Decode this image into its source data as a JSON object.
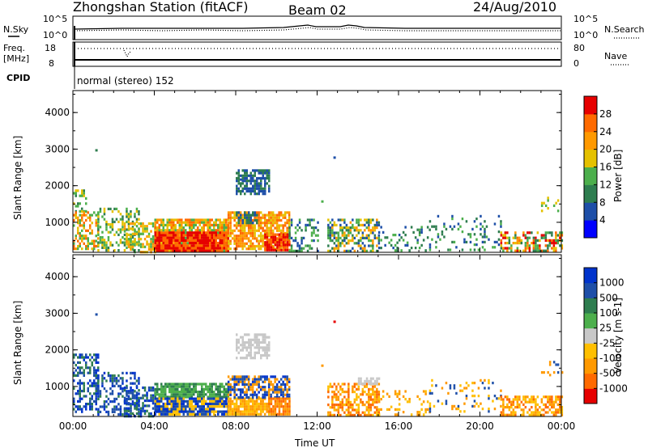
{
  "title": {
    "station": "Zhongshan Station (fitACF)",
    "beam": "Beam 02",
    "date": "24/Aug/2010"
  },
  "header_panels": {
    "noise_label": "N.Sky",
    "noise_ticks": [
      "10^5",
      "10^0"
    ],
    "search_label": "N.Search",
    "search_ticks": [
      "10^5",
      "10^0"
    ],
    "freq_label_1": "Freq.",
    "freq_label_2": "[MHz]",
    "freq_ticks": [
      "18",
      "8"
    ],
    "nave_label": "Nave",
    "nave_ticks": [
      "80",
      "0"
    ],
    "cpid_label": "CPID",
    "cpid_text": "normal (stereo) 152"
  },
  "chart_data": [
    {
      "type": "heatmap",
      "name": "power",
      "ylabel": "Slant Range [km]",
      "xlabel": "",
      "ylim": [
        180,
        4600
      ],
      "yticks": [
        "1000",
        "2000",
        "3000",
        "4000"
      ],
      "xlim": [
        0,
        24
      ],
      "xticks": [
        "00:00",
        "04:00",
        "08:00",
        "12:00",
        "16:00",
        "20:00",
        "00:00"
      ],
      "colorbar": {
        "label": "Power [dB]",
        "ticks": [
          "28",
          "24",
          "20",
          "16",
          "12",
          "8",
          "4"
        ],
        "colors": [
          "#0000ff",
          "#1e4fa8",
          "#2e7d4f",
          "#4caf4c",
          "#e5c100",
          "#ff9900",
          "#ff6a00",
          "#e60000"
        ]
      },
      "points": [
        {
          "t_hr": 1.1,
          "range_km": 3000,
          "level": 2
        },
        {
          "t_hr": 8.2,
          "range_km": 2200,
          "level": 1
        },
        {
          "t_hr": 8.8,
          "range_km": 2000,
          "level": 1
        },
        {
          "t_hr": 12.8,
          "range_km": 2800,
          "level": 1
        },
        {
          "t_hr": 12.2,
          "range_km": 1600,
          "level": 3
        }
      ],
      "regions": [
        {
          "t0": 0.0,
          "t1": 0.6,
          "r0": 1300,
          "r1": 1900,
          "fill": 0.4,
          "mix": [
            2,
            3,
            4
          ]
        },
        {
          "t0": 0.0,
          "t1": 1.2,
          "r0": 300,
          "r1": 1300,
          "fill": 0.55,
          "mix": [
            3,
            4,
            5,
            6
          ]
        },
        {
          "t0": 1.2,
          "t1": 3.2,
          "r0": 200,
          "r1": 1400,
          "fill": 0.4,
          "mix": [
            2,
            3,
            4
          ]
        },
        {
          "t0": 2.5,
          "t1": 4.0,
          "r0": 200,
          "r1": 1000,
          "fill": 0.55,
          "mix": [
            3,
            4,
            5
          ]
        },
        {
          "t0": 4.0,
          "t1": 7.6,
          "r0": 250,
          "r1": 1100,
          "fill": 0.85,
          "mix": [
            3,
            4,
            5,
            6
          ]
        },
        {
          "t0": 4.0,
          "t1": 7.6,
          "r0": 250,
          "r1": 750,
          "fill": 0.95,
          "mix": [
            6,
            7
          ]
        },
        {
          "t0": 7.6,
          "t1": 10.6,
          "r0": 250,
          "r1": 1300,
          "fill": 0.75,
          "mix": [
            4,
            5,
            6
          ]
        },
        {
          "t0": 9.4,
          "t1": 10.6,
          "r0": 250,
          "r1": 700,
          "fill": 0.85,
          "mix": [
            6,
            7
          ]
        },
        {
          "t0": 8.0,
          "t1": 9.6,
          "r0": 1800,
          "r1": 2450,
          "fill": 0.7,
          "mix": [
            1,
            2
          ]
        },
        {
          "t0": 8.0,
          "t1": 9.0,
          "r0": 1000,
          "r1": 1300,
          "fill": 0.7,
          "mix": [
            1,
            2
          ]
        },
        {
          "t0": 10.6,
          "t1": 12.0,
          "r0": 250,
          "r1": 1100,
          "fill": 0.3,
          "mix": [
            1,
            2,
            3
          ]
        },
        {
          "t0": 12.5,
          "t1": 15.0,
          "r0": 250,
          "r1": 1100,
          "fill": 0.55,
          "mix": [
            1,
            2,
            3,
            4,
            5
          ]
        },
        {
          "t0": 15.0,
          "t1": 17.5,
          "r0": 250,
          "r1": 900,
          "fill": 0.2,
          "mix": [
            1,
            2,
            3
          ]
        },
        {
          "t0": 17.5,
          "t1": 21.0,
          "r0": 250,
          "r1": 1200,
          "fill": 0.15,
          "mix": [
            1,
            2,
            3
          ]
        },
        {
          "t0": 21.0,
          "t1": 24.0,
          "r0": 250,
          "r1": 750,
          "fill": 0.6,
          "mix": [
            2,
            3,
            4,
            5,
            6,
            7
          ]
        },
        {
          "t0": 23.0,
          "t1": 24.0,
          "r0": 1300,
          "r1": 1700,
          "fill": 0.2,
          "mix": [
            3,
            4
          ]
        }
      ]
    },
    {
      "type": "heatmap",
      "name": "velocity",
      "ylabel": "Slant Range [km]",
      "xlabel": "Time UT",
      "ylim": [
        180,
        4600
      ],
      "yticks": [
        "1000",
        "2000",
        "3000",
        "4000"
      ],
      "xlim": [
        0,
        24
      ],
      "xticks": [
        "00:00",
        "04:00",
        "08:00",
        "12:00",
        "16:00",
        "20:00",
        "00:00"
      ],
      "colorbar": {
        "label": "Velocity [m s-1]",
        "ticks": [
          "1000",
          "500",
          "100",
          "25",
          "-25",
          "-100",
          "-500",
          "-1000"
        ],
        "colors": [
          "#e60000",
          "#ff6a00",
          "#ff9900",
          "#ffbf00",
          "#c8c8c8",
          "#4caf4c",
          "#2e7d4f",
          "#1e4fa8",
          "#0033cc"
        ]
      },
      "points": [
        {
          "t_hr": 1.1,
          "range_km": 3000,
          "level": 7
        },
        {
          "t_hr": 12.8,
          "range_km": 2800,
          "level": 0
        },
        {
          "t_hr": 12.2,
          "range_km": 1600,
          "level": 2
        }
      ],
      "regions": [
        {
          "t0": 0.0,
          "t1": 1.2,
          "r0": 300,
          "r1": 1900,
          "fill": 0.45,
          "mix": [
            7,
            8,
            6
          ]
        },
        {
          "t0": 1.2,
          "t1": 3.2,
          "r0": 200,
          "r1": 1400,
          "fill": 0.4,
          "mix": [
            7,
            8,
            6
          ]
        },
        {
          "t0": 2.5,
          "t1": 4.0,
          "r0": 200,
          "r1": 1000,
          "fill": 0.55,
          "mix": [
            7,
            8,
            6
          ]
        },
        {
          "t0": 4.0,
          "t1": 7.6,
          "r0": 700,
          "r1": 1100,
          "fill": 0.85,
          "mix": [
            6,
            5
          ]
        },
        {
          "t0": 4.0,
          "t1": 7.6,
          "r0": 250,
          "r1": 700,
          "fill": 0.9,
          "mix": [
            8,
            7,
            3
          ]
        },
        {
          "t0": 7.6,
          "t1": 9.6,
          "r0": 250,
          "r1": 700,
          "fill": 0.85,
          "mix": [
            2,
            3
          ]
        },
        {
          "t0": 7.6,
          "t1": 10.6,
          "r0": 700,
          "r1": 1300,
          "fill": 0.7,
          "mix": [
            7,
            8,
            2
          ]
        },
        {
          "t0": 9.6,
          "t1": 10.6,
          "r0": 250,
          "r1": 700,
          "fill": 0.8,
          "mix": [
            2,
            1
          ]
        },
        {
          "t0": 8.0,
          "t1": 9.6,
          "r0": 1800,
          "r1": 2450,
          "fill": 0.65,
          "mix": [
            4
          ]
        },
        {
          "t0": 12.5,
          "t1": 15.0,
          "r0": 250,
          "r1": 1100,
          "fill": 0.55,
          "mix": [
            2,
            3,
            1
          ]
        },
        {
          "t0": 14.0,
          "t1": 15.0,
          "r0": 1100,
          "r1": 1250,
          "fill": 0.6,
          "mix": [
            4
          ]
        },
        {
          "t0": 15.0,
          "t1": 17.5,
          "r0": 250,
          "r1": 900,
          "fill": 0.2,
          "mix": [
            2,
            3
          ]
        },
        {
          "t0": 17.5,
          "t1": 21.0,
          "r0": 250,
          "r1": 1200,
          "fill": 0.15,
          "mix": [
            2,
            3,
            7
          ]
        },
        {
          "t0": 21.0,
          "t1": 24.0,
          "r0": 250,
          "r1": 750,
          "fill": 0.6,
          "mix": [
            2,
            3,
            1
          ]
        },
        {
          "t0": 23.0,
          "t1": 24.0,
          "r0": 1300,
          "r1": 1700,
          "fill": 0.2,
          "mix": [
            2,
            7
          ]
        }
      ]
    }
  ]
}
